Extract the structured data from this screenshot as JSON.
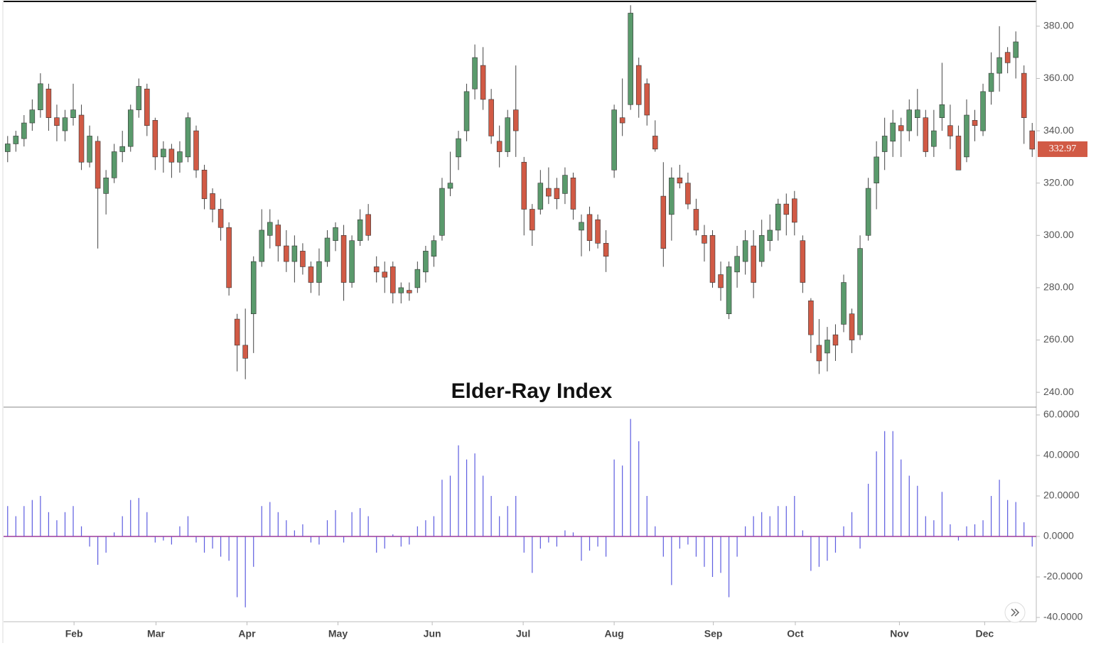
{
  "chart_data": [
    {
      "type": "candlestick",
      "up_color": "#5a9a6c",
      "down_color": "#d15a45",
      "xlim": [
        -0.5,
        125.5
      ],
      "ylim": [
        234.6,
        389.2
      ],
      "yticks": [
        {
          "value": 240,
          "label": "240.00"
        },
        {
          "value": 260,
          "label": "260.00"
        },
        {
          "value": 280,
          "label": "280.00"
        },
        {
          "value": 300,
          "label": "300.00"
        },
        {
          "value": 320,
          "label": "320.00"
        },
        {
          "value": 340,
          "label": "340.00"
        },
        {
          "value": 360,
          "label": "360.00"
        },
        {
          "value": 380,
          "label": "380.00"
        }
      ],
      "last_price": {
        "value": 332.97,
        "label": "332.97"
      },
      "ohlc": [
        [
          332,
          338,
          328,
          335
        ],
        [
          335,
          340,
          332,
          338
        ],
        [
          337,
          346,
          334,
          343
        ],
        [
          343,
          352,
          340,
          348
        ],
        [
          348,
          362,
          345,
          358
        ],
        [
          356,
          358,
          340,
          345
        ],
        [
          345,
          350,
          336,
          342
        ],
        [
          340,
          348,
          336,
          345
        ],
        [
          345,
          358,
          342,
          348
        ],
        [
          346,
          350,
          325,
          328
        ],
        [
          328,
          342,
          326,
          338
        ],
        [
          336,
          338,
          295,
          318
        ],
        [
          316,
          325,
          308,
          322
        ],
        [
          322,
          335,
          320,
          332
        ],
        [
          332,
          340,
          328,
          334
        ],
        [
          334,
          350,
          332,
          348
        ],
        [
          348,
          360,
          345,
          357
        ],
        [
          356,
          358,
          338,
          342
        ],
        [
          344,
          345,
          325,
          330
        ],
        [
          330,
          336,
          324,
          333
        ],
        [
          333,
          335,
          322,
          328
        ],
        [
          328,
          336,
          324,
          332
        ],
        [
          330,
          347,
          328,
          345
        ],
        [
          340,
          342,
          322,
          325
        ],
        [
          325,
          327,
          310,
          314
        ],
        [
          316,
          318,
          305,
          310
        ],
        [
          310,
          314,
          298,
          303
        ],
        [
          303,
          305,
          277,
          280
        ],
        [
          268,
          270,
          248,
          258
        ],
        [
          258,
          272,
          245,
          253
        ],
        [
          270,
          292,
          255,
          290
        ],
        [
          290,
          310,
          288,
          302
        ],
        [
          300,
          310,
          295,
          305
        ],
        [
          304,
          306,
          290,
          296
        ],
        [
          296,
          302,
          286,
          290
        ],
        [
          290,
          300,
          282,
          296
        ],
        [
          294,
          297,
          285,
          288
        ],
        [
          288,
          290,
          278,
          282
        ],
        [
          282,
          295,
          277,
          290
        ],
        [
          290,
          302,
          288,
          299
        ],
        [
          298,
          305,
          294,
          303
        ],
        [
          300,
          304,
          275,
          282
        ],
        [
          282,
          300,
          280,
          298
        ],
        [
          298,
          310,
          296,
          306
        ],
        [
          308,
          312,
          298,
          300
        ],
        [
          288,
          292,
          282,
          286
        ],
        [
          286,
          290,
          278,
          284
        ],
        [
          288,
          290,
          274,
          278
        ],
        [
          278,
          282,
          274,
          280
        ],
        [
          279,
          282,
          275,
          278
        ],
        [
          280,
          290,
          278,
          287
        ],
        [
          286,
          296,
          282,
          294
        ],
        [
          292,
          300,
          288,
          298
        ],
        [
          300,
          322,
          298,
          318
        ],
        [
          318,
          332,
          315,
          320
        ],
        [
          330,
          340,
          325,
          337
        ],
        [
          340,
          358,
          336,
          355
        ],
        [
          356,
          373,
          352,
          368
        ],
        [
          365,
          372,
          348,
          352
        ],
        [
          352,
          356,
          335,
          338
        ],
        [
          336,
          342,
          326,
          332
        ],
        [
          332,
          348,
          330,
          345
        ],
        [
          348,
          365,
          330,
          340
        ],
        [
          328,
          330,
          300,
          310
        ],
        [
          310,
          312,
          296,
          302
        ],
        [
          310,
          325,
          308,
          320
        ],
        [
          318,
          326,
          312,
          315
        ],
        [
          318,
          322,
          310,
          314
        ],
        [
          316,
          326,
          312,
          323
        ],
        [
          322,
          324,
          306,
          310
        ],
        [
          302,
          308,
          292,
          305
        ],
        [
          308,
          311,
          294,
          298
        ],
        [
          306,
          308,
          295,
          297
        ],
        [
          297,
          302,
          286,
          292
        ],
        [
          325,
          350,
          322,
          348
        ],
        [
          345,
          360,
          338,
          343
        ],
        [
          350,
          388,
          348,
          385
        ],
        [
          365,
          368,
          345,
          350
        ],
        [
          358,
          360,
          342,
          346
        ],
        [
          338,
          344,
          332,
          333
        ],
        [
          315,
          328,
          288,
          295
        ],
        [
          308,
          326,
          298,
          322
        ],
        [
          322,
          327,
          318,
          320
        ],
        [
          320,
          324,
          310,
          312
        ],
        [
          310,
          314,
          300,
          302
        ],
        [
          300,
          304,
          290,
          297
        ],
        [
          300,
          302,
          280,
          282
        ],
        [
          285,
          290,
          275,
          280
        ],
        [
          270,
          290,
          268,
          288
        ],
        [
          286,
          296,
          280,
          292
        ],
        [
          290,
          302,
          285,
          298
        ],
        [
          296,
          302,
          276,
          282
        ],
        [
          290,
          306,
          288,
          300
        ],
        [
          298,
          308,
          294,
          302
        ],
        [
          302,
          314,
          298,
          312
        ],
        [
          312,
          316,
          300,
          308
        ],
        [
          314,
          317,
          300,
          305
        ],
        [
          298,
          300,
          278,
          282
        ],
        [
          275,
          276,
          255,
          262
        ],
        [
          258,
          268,
          247,
          252
        ],
        [
          255,
          265,
          248,
          260
        ],
        [
          262,
          266,
          252,
          258
        ],
        [
          266,
          285,
          263,
          282
        ],
        [
          270,
          272,
          255,
          260
        ],
        [
          262,
          300,
          260,
          295
        ],
        [
          300,
          322,
          298,
          318
        ],
        [
          320,
          336,
          310,
          330
        ],
        [
          332,
          345,
          325,
          338
        ],
        [
          336,
          348,
          330,
          343
        ],
        [
          342,
          345,
          330,
          340
        ],
        [
          340,
          352,
          336,
          348
        ],
        [
          345,
          356,
          338,
          348
        ],
        [
          345,
          348,
          330,
          332
        ],
        [
          334,
          348,
          330,
          340
        ],
        [
          345,
          366,
          340,
          350
        ],
        [
          342,
          350,
          333,
          338
        ],
        [
          338,
          342,
          325,
          325
        ],
        [
          330,
          352,
          328,
          346
        ],
        [
          344,
          348,
          336,
          342
        ],
        [
          340,
          358,
          338,
          355
        ],
        [
          355,
          370,
          350,
          362
        ],
        [
          362,
          380,
          355,
          368
        ],
        [
          370,
          372,
          362,
          366
        ],
        [
          368,
          378,
          360,
          374
        ],
        [
          362,
          365,
          335,
          345
        ],
        [
          340,
          343,
          330,
          332.97
        ]
      ]
    },
    {
      "type": "bar",
      "title": "Elder-Ray Index",
      "color": "#5c5ce0",
      "zero_color": "#9c3c9c",
      "xlim": [
        -0.5,
        125.5
      ],
      "ylim": [
        -42.1,
        63.5
      ],
      "yticks": [
        {
          "value": -40,
          "label": "-40.0000"
        },
        {
          "value": -20,
          "label": "-20.0000"
        },
        {
          "value": 0,
          "label": "0.0000"
        },
        {
          "value": 20,
          "label": "20.0000"
        },
        {
          "value": 40,
          "label": "40.0000"
        },
        {
          "value": 60,
          "label": "60.0000"
        }
      ],
      "xticks": [
        {
          "value": 8.1,
          "label": "Feb"
        },
        {
          "value": 18.1,
          "label": "Mar"
        },
        {
          "value": 29.2,
          "label": "Apr"
        },
        {
          "value": 40.3,
          "label": "May"
        },
        {
          "value": 51.8,
          "label": "Jun"
        },
        {
          "value": 62.9,
          "label": "Jul"
        },
        {
          "value": 74,
          "label": "Aug"
        },
        {
          "value": 86.1,
          "label": "Sep"
        },
        {
          "value": 96.1,
          "label": "Oct"
        },
        {
          "value": 108.8,
          "label": "Nov"
        },
        {
          "value": 119.2,
          "label": "Dec"
        }
      ],
      "values": [
        15,
        10,
        15,
        18,
        20,
        12,
        8,
        12,
        15,
        5,
        -5,
        -14,
        -8,
        2,
        10,
        18,
        19,
        12,
        -3,
        -2,
        -4,
        5,
        10,
        -3,
        -8,
        -6,
        -10,
        -12,
        -30,
        -35,
        -15,
        15,
        17,
        12,
        8,
        3,
        6,
        -3,
        -4,
        8,
        13,
        -3,
        12,
        14,
        10,
        -8,
        -6,
        1,
        -5,
        -4,
        5,
        8,
        10,
        28,
        30,
        45,
        38,
        41,
        30,
        20,
        10,
        15,
        20,
        -8,
        -18,
        -6,
        -3,
        -5,
        3,
        2,
        -12,
        -7,
        -5,
        -10,
        38,
        35,
        58,
        47,
        20,
        5,
        -10,
        -24,
        -6,
        -4,
        -10,
        -15,
        -20,
        -18,
        -30,
        -10,
        5,
        10,
        12,
        10,
        15,
        15,
        20,
        3,
        -17,
        -15,
        -12,
        -8,
        5,
        12,
        -6,
        26,
        42,
        52,
        52,
        38,
        30,
        25,
        10,
        8,
        22,
        6,
        -2,
        5,
        6,
        8,
        20,
        28,
        18,
        17,
        7,
        -5
      ]
    }
  ]
}
